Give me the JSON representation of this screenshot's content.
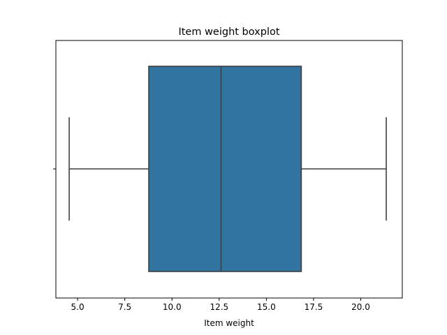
{
  "chart_data": {
    "type": "boxplot",
    "title": "Item weight boxplot",
    "xlabel": "Item weight",
    "ylabel": "",
    "orientation": "horizontal",
    "xlim": [
      3.85,
      22.2
    ],
    "x_ticks": [
      5.0,
      7.5,
      10.0,
      12.5,
      15.0,
      17.5,
      20.0
    ],
    "x_tick_labels": [
      "5.0",
      "7.5",
      "10.0",
      "12.5",
      "15.0",
      "17.5",
      "20.0"
    ],
    "grid": false,
    "box": {
      "whisker_low": 4.555,
      "q1": 8.77,
      "median": 12.6,
      "q3": 16.85,
      "whisker_high": 21.35
    },
    "colors": {
      "box_fill": "#3274a1",
      "line": "#3f3f3f",
      "axes": "#000000"
    }
  }
}
